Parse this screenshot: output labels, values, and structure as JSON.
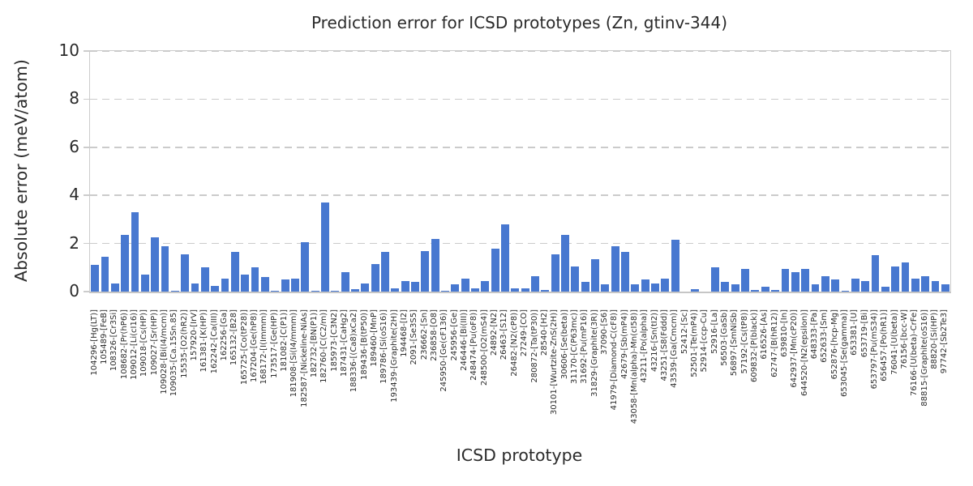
{
  "chart_data": {
    "type": "bar",
    "title": "Prediction error for ICSD prototypes (Zn, gtinv-344)",
    "xlabel": "ICSD prototype",
    "ylabel": "Absolute error (meV/atom)",
    "ylim": [
      0,
      10
    ],
    "yticks": [
      0,
      2,
      4,
      6,
      8,
      10
    ],
    "grid": "horizontal-dashed",
    "legend": "none",
    "bar_color": "#4878d0",
    "categories": [
      "104296-[Hg(LT)]",
      "105489-[FeB]",
      "108326-[Cr3Si]",
      "108682-[Pr(hP6)]",
      "109012-[Li(cI16)]",
      "109018-[Cs(HP)]",
      "109027-[Sr(HP)]",
      "109028-[Bi(I4/mcm)]",
      "109035-[Ca.15Sn.85]",
      "15535-[O2(hR2)]",
      "157920-[IrV]",
      "161381-[K(HP)]",
      "162242-[Ca(III)]",
      "162256-[Ga]",
      "165132-[B28]",
      "165725-[Co(tP28)]",
      "167204-[Ge(hP8)]",
      "168172-[I(Immm)]",
      "173517-[Ge(HP)]",
      "181082-[C(P1)]",
      "181908-[Si(I4/mmm)]",
      "182587-[Nickeline-NiAs]",
      "182732-[BN(P1)]",
      "182760-[C(C2/m)]",
      "185973-[C3N2]",
      "187431-[CaHg2]",
      "188336-[(Ca8)xCa2]",
      "189436-[B(tP50)]",
      "189460-[MnP]",
      "189786-[Si(oS16)]",
      "193439-[Graphite(2H)]",
      "194468-[I2]",
      "2091-[Se3S5]",
      "236662-[Sn]",
      "236858-[O8]",
      "245950-[Ge(cF136)]",
      "245956-[Ge]",
      "246446-[Bi(III)]",
      "248474-[Pu(oF8)]",
      "248500-[O2(mS4)]",
      "24892-[N2]",
      "26463-[S12]",
      "26482-[N2(cP8)]",
      "27249-[CO]",
      "280872-[Ta(tP30)]",
      "28540-[H2]",
      "30101-[Wurtzite-ZnS(2H)]",
      "30606-[Se(beta)]",
      "31170-[C(P63mc)]",
      "31692-[Pu(mP16)]",
      "31829-[Graphite(3R)]",
      "37090-[S6]",
      "41979-[Diamond-C(cF8)]",
      "42679-[Sb(mP4)]",
      "43058-[Mn(alpha)-Mn(cI58)]",
      "43211-[Po(alpha)]",
      "43216-[Sn(tI2)]",
      "43251-[S8(Fddd)]",
      "43539-[Ga(Cmcm)]",
      "52412-[Sc]",
      "52501-[Te(mP4)]",
      "52914-[ccp-Cu]",
      "52916-[La]",
      "56503-[GaSb]",
      "56897-[SmNiSb]",
      "57192-[Cs(tP8)]",
      "609832-[P(black)]",
      "616526-[As]",
      "62747-[B(hR12)]",
      "639810-[In]",
      "642937-[Mn(cP20)]",
      "644520-[N2(epsilon)]",
      "648333-[Pa]",
      "652633-[Sm]",
      "652876-[hcp-Mg]",
      "653045-[Se(gamma)]",
      "653381-[U]",
      "653719-[Bi]",
      "653797-[Pu(mS34)]",
      "656457-[Po(hR1)]",
      "76041-[U(beta)]",
      "76156-[bcc-W]",
      "76166-[U(beta)-CrFe]",
      "88815-[Graphite(oS16)]",
      "88820-[Si(HP)]",
      "97742-[Sb2Te3]"
    ],
    "values": [
      1.1,
      1.45,
      0.35,
      2.35,
      3.3,
      0.7,
      2.25,
      1.9,
      0.02,
      1.55,
      0.35,
      1.0,
      0.25,
      0.55,
      1.65,
      0.7,
      1.0,
      0.6,
      0.02,
      0.5,
      0.55,
      2.05,
      0.05,
      3.7,
      0.02,
      0.8,
      0.1,
      0.35,
      1.15,
      1.65,
      0.15,
      0.45,
      0.4,
      1.7,
      2.2,
      0.05,
      0.3,
      0.55,
      0.15,
      0.45,
      1.8,
      2.8,
      0.12,
      0.12,
      0.65,
      0.08,
      1.55,
      2.35,
      1.05,
      0.4,
      1.35,
      0.3,
      1.9,
      1.65,
      0.3,
      0.5,
      0.35,
      0.55,
      2.15,
      0.0,
      0.1,
      0.0,
      1.0,
      0.4,
      0.3,
      0.95,
      0.08,
      0.2,
      0.08,
      0.95,
      0.8,
      0.95,
      0.3,
      0.65,
      0.5,
      0.05,
      0.55,
      0.45,
      1.5,
      0.2,
      1.05,
      1.2,
      0.55,
      0.65,
      0.45,
      0.3
    ]
  }
}
